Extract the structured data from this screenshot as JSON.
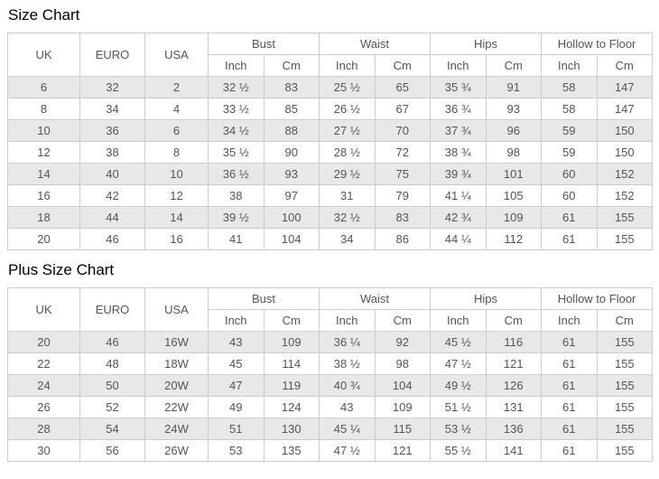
{
  "colors": {
    "background": "#ffffff",
    "table_border": "#cccccc",
    "row_stripe": "#e8e8e8",
    "cell_text": "#555555",
    "title_text": "#000000"
  },
  "chart_data": [
    {
      "type": "table",
      "title": "Size Chart",
      "column_group_labels": {
        "uk": "UK",
        "euro": "EURO",
        "usa": "USA",
        "bust": "Bust",
        "waist": "Waist",
        "hips": "Hips",
        "hollow_to_floor": "Hollow to Floor"
      },
      "unit_labels": [
        "Inch",
        "Cm",
        "Inch",
        "Cm",
        "Inch",
        "Cm",
        "Inch",
        "Cm"
      ],
      "columns_flat": [
        "UK",
        "EURO",
        "USA",
        "Bust Inch",
        "Bust Cm",
        "Waist Inch",
        "Waist Cm",
        "Hips Inch",
        "Hips Cm",
        "Hollow to Floor Inch",
        "Hollow to Floor Cm"
      ],
      "rows": [
        [
          "6",
          "32",
          "2",
          "32 ½",
          "83",
          "25 ½",
          "65",
          "35 ¾",
          "91",
          "58",
          "147"
        ],
        [
          "8",
          "34",
          "4",
          "33 ½",
          "85",
          "26 ½",
          "67",
          "36 ¾",
          "93",
          "58",
          "147"
        ],
        [
          "10",
          "36",
          "6",
          "34 ½",
          "88",
          "27 ½",
          "70",
          "37 ¾",
          "96",
          "59",
          "150"
        ],
        [
          "12",
          "38",
          "8",
          "35 ½",
          "90",
          "28 ½",
          "72",
          "38 ¾",
          "98",
          "59",
          "150"
        ],
        [
          "14",
          "40",
          "10",
          "36 ½",
          "93",
          "29 ½",
          "75",
          "39 ¾",
          "101",
          "60",
          "152"
        ],
        [
          "16",
          "42",
          "12",
          "38",
          "97",
          "31",
          "79",
          "41 ¼",
          "105",
          "60",
          "152"
        ],
        [
          "18",
          "44",
          "14",
          "39 ½",
          "100",
          "32 ½",
          "83",
          "42 ¾",
          "109",
          "61",
          "155"
        ],
        [
          "20",
          "46",
          "16",
          "41",
          "104",
          "34",
          "86",
          "44 ¼",
          "112",
          "61",
          "155"
        ]
      ]
    },
    {
      "type": "table",
      "title": "Plus Size Chart",
      "column_group_labels": {
        "uk": "UK",
        "euro": "EURO",
        "usa": "USA",
        "bust": "Bust",
        "waist": "Waist",
        "hips": "Hips",
        "hollow_to_floor": "Hollow to Floor"
      },
      "unit_labels": [
        "Inch",
        "Cm",
        "Inch",
        "Cm",
        "Inch",
        "Cm",
        "Inch",
        "Cm"
      ],
      "columns_flat": [
        "UK",
        "EURO",
        "USA",
        "Bust Inch",
        "Bust Cm",
        "Waist Inch",
        "Waist Cm",
        "Hips Inch",
        "Hips Cm",
        "Hollow to Floor Inch",
        "Hollow to Floor Cm"
      ],
      "rows": [
        [
          "20",
          "46",
          "16W",
          "43",
          "109",
          "36 ¼",
          "92",
          "45 ½",
          "116",
          "61",
          "155"
        ],
        [
          "22",
          "48",
          "18W",
          "45",
          "114",
          "38 ½",
          "98",
          "47 ½",
          "121",
          "61",
          "155"
        ],
        [
          "24",
          "50",
          "20W",
          "47",
          "119",
          "40 ¾",
          "104",
          "49 ½",
          "126",
          "61",
          "155"
        ],
        [
          "26",
          "52",
          "22W",
          "49",
          "124",
          "43",
          "109",
          "51 ½",
          "131",
          "61",
          "155"
        ],
        [
          "28",
          "54",
          "24W",
          "51",
          "130",
          "45 ¼",
          "115",
          "53 ½",
          "136",
          "61",
          "155"
        ],
        [
          "30",
          "56",
          "26W",
          "53",
          "135",
          "47 ½",
          "121",
          "55 ½",
          "141",
          "61",
          "155"
        ]
      ]
    }
  ]
}
